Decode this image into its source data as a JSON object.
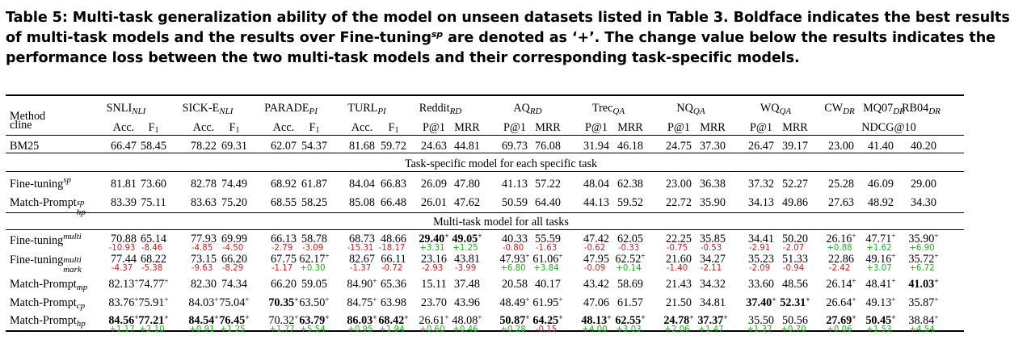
{
  "caption": {
    "part1": "Table 5: Multi-task generalization ability of the model on unseen datasets listed in Table 3. Boldface indicates the best results",
    "part2a": "of multi-task models and the results over Fine-tuning",
    "part2sup": "sp",
    "part2b": " are denoted as ‘+’. The change value below the results indicates the",
    "part3": "performance loss between the two multi-task models and their corresponding task-specific models."
  },
  "header": {
    "method": "Method",
    "cline": "cline",
    "datasets": [
      {
        "name": "SNLI",
        "sub": "NLI"
      },
      {
        "name": "SICK-E",
        "sub": "NLI"
      },
      {
        "name": "PARADE",
        "sub": "PI"
      },
      {
        "name": "TURL",
        "sub": "PI"
      },
      {
        "name": "Reddit",
        "sub": "RD"
      },
      {
        "name": "AQ",
        "sub": "RD"
      },
      {
        "name": "Trec",
        "sub": "QA"
      },
      {
        "name": "NQ",
        "sub": "QA"
      },
      {
        "name": "WQ",
        "sub": "QA"
      },
      {
        "name": "CW",
        "sub": "DR"
      },
      {
        "name": "MQ07",
        "sub": "DR"
      },
      {
        "name": "RB04",
        "sub": "DR"
      }
    ],
    "metrics": [
      "Acc.",
      "F1",
      "Acc.",
      "F1",
      "Acc.",
      "F1",
      "Acc.",
      "F1",
      "P@1",
      "MRR",
      "P@1",
      "MRR",
      "P@1",
      "MRR",
      "P@1",
      "MRR",
      "P@1",
      "MRR"
    ],
    "ndcg": "NDCG@10"
  },
  "section_task_specific": "Task-specific model for each specific task",
  "section_multi": "Multi-task model for all tasks",
  "rows": [
    {
      "method": "BM25",
      "msub": "",
      "msup": "",
      "values": [
        "66.47",
        "58.45",
        "78.22",
        "69.31",
        "62.07",
        "54.37",
        "81.68",
        "59.72",
        "24.63",
        "44.81",
        "69.73",
        "76.08",
        "31.94",
        "46.18",
        "24.75",
        "37.30",
        "26.47",
        "39.17",
        "23.00",
        "41.40",
        "40.20"
      ],
      "plus": [],
      "bold": [],
      "deltas": []
    },
    {
      "method": "Fine-tuning",
      "msub": "",
      "msup": "sp",
      "values": [
        "81.81",
        "73.60",
        "82.78",
        "74.49",
        "68.92",
        "61.87",
        "84.04",
        "66.83",
        "26.09",
        "47.80",
        "41.13",
        "57.22",
        "48.04",
        "62.38",
        "23.00",
        "36.38",
        "37.32",
        "52.27",
        "25.28",
        "46.09",
        "29.00"
      ],
      "plus": [],
      "bold": [],
      "deltas": []
    },
    {
      "method": "Match-Prompt",
      "msub": "hp",
      "msup": "sp",
      "values": [
        "83.39",
        "75.11",
        "83.63",
        "75.20",
        "68.55",
        "58.25",
        "85.08",
        "66.48",
        "26.01",
        "47.62",
        "50.59",
        "64.40",
        "44.13",
        "59.52",
        "22.72",
        "35.90",
        "34.13",
        "49.86",
        "27.63",
        "48.92",
        "34.30"
      ],
      "plus": [],
      "bold": [],
      "deltas": []
    },
    {
      "method": "Fine-tuning",
      "msub": "",
      "msup": "multi",
      "values": [
        "70.88",
        "65.14",
        "77.93",
        "69.99",
        "66.13",
        "58.78",
        "68.73",
        "48.66",
        "29.40",
        "49.05",
        "40.33",
        "55.59",
        "47.42",
        "62.05",
        "22.25",
        "35.85",
        "34.41",
        "50.20",
        "26.16",
        "47.71",
        "35.90"
      ],
      "plus": [
        8,
        9,
        18,
        19,
        20
      ],
      "bold": [
        8,
        9
      ],
      "deltas": [
        "-10.93",
        "-8.46",
        "-4.85",
        "-4.50",
        "-2.79",
        "-3.09",
        "-15.31",
        "-18.17",
        "+3.31",
        "+1.25",
        "-0.80",
        "-1.63",
        "-0.62",
        "-0.33",
        "-0.75",
        "-0.53",
        "-2.91",
        "-2.07",
        "+0.88",
        "+1.62",
        "+6.90"
      ]
    },
    {
      "method": "Fine-tuning",
      "msub": "mark",
      "msup": "multi",
      "values": [
        "77.44",
        "68.22",
        "73.15",
        "66.20",
        "67.75",
        "62.17",
        "82.67",
        "66.11",
        "23.16",
        "43.81",
        "47.93",
        "61.06",
        "47.95",
        "62.52",
        "21.60",
        "34.27",
        "35.23",
        "51.33",
        "22.86",
        "49.16",
        "35.72"
      ],
      "plus": [
        5,
        10,
        11,
        13,
        19,
        20
      ],
      "bold": [],
      "deltas": [
        "-4.37",
        "-5.38",
        "-9.63",
        "-8.29",
        "-1.17",
        "+0.30",
        "-1.37",
        "-0.72",
        "-2.93",
        "-3.99",
        "+6.80",
        "+3.84",
        "-0.09",
        "+0.14",
        "-1.40",
        "-2.11",
        "-2.09",
        "-0.94",
        "-2.42",
        "+3.07",
        "+6.72"
      ]
    },
    {
      "method": "Match-Prompt",
      "msub": "mp",
      "msup": "",
      "values": [
        "82.13",
        "74.77",
        "82.30",
        "74.34",
        "66.20",
        "59.05",
        "84.90",
        "65.36",
        "15.11",
        "37.48",
        "20.58",
        "40.17",
        "43.42",
        "58.69",
        "21.43",
        "34.32",
        "33.60",
        "48.56",
        "26.14",
        "48.41",
        "41.03"
      ],
      "plus": [
        0,
        1,
        6,
        18,
        19,
        20
      ],
      "bold": [
        20
      ],
      "deltas": []
    },
    {
      "method": "Match-Prompt",
      "msub": "cp",
      "msup": "",
      "values": [
        "83.76",
        "75.91",
        "84.03",
        "75.04",
        "70.35",
        "63.50",
        "84.75",
        "63.98",
        "23.70",
        "43.96",
        "48.49",
        "61.95",
        "47.06",
        "61.57",
        "21.50",
        "34.81",
        "37.40",
        "52.31",
        "26.64",
        "49.13",
        "35.87"
      ],
      "plus": [
        0,
        1,
        2,
        3,
        4,
        5,
        6,
        10,
        11,
        16,
        17,
        18,
        19,
        20
      ],
      "bold": [
        4,
        16,
        17
      ],
      "deltas": []
    },
    {
      "method": "Match-Prompt",
      "msub": "hp",
      "msup": "",
      "values": [
        "84.56",
        "77.21",
        "84.54",
        "76.45",
        "70.32",
        "63.79",
        "86.03",
        "68.42",
        "26.61",
        "48.08",
        "50.87",
        "64.25",
        "48.13",
        "62.55",
        "24.78",
        "37.37",
        "35.50",
        "50.56",
        "27.69",
        "50.45",
        "38.84"
      ],
      "plus": [
        0,
        1,
        2,
        3,
        4,
        5,
        6,
        7,
        8,
        9,
        10,
        11,
        12,
        13,
        14,
        15,
        18,
        19,
        20
      ],
      "bold": [
        0,
        1,
        2,
        3,
        5,
        6,
        7,
        10,
        11,
        12,
        13,
        14,
        15,
        18,
        19
      ],
      "deltas": [
        "+1.17",
        "+2.10",
        "+0.91",
        "+1.25",
        "+1.77",
        "+5.54",
        "+0.95",
        "+1.94",
        "+0.60",
        "+0.46",
        "+0.28",
        "-0.15",
        "+4.00",
        "+3.03",
        "+2.06",
        "+1.47",
        "+1.37",
        "+0.70",
        "+0.06",
        "+1.53",
        "+4.54"
      ]
    }
  ],
  "colors": {
    "negative": "#e01818",
    "positive": "#14b814"
  }
}
